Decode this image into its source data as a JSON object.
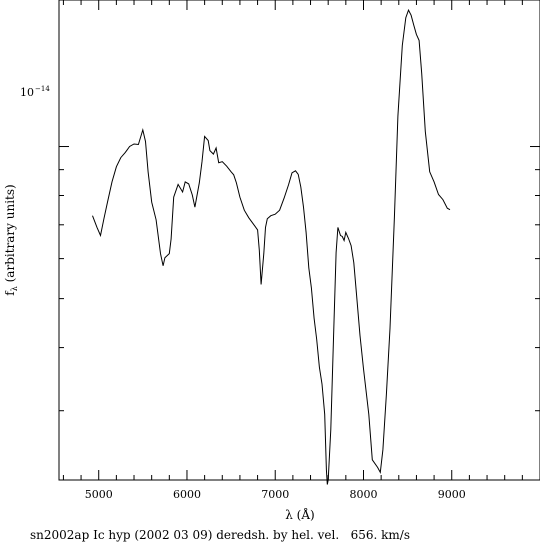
{
  "chart_data": {
    "type": "line",
    "title": "",
    "caption": "sn2002ap Ic hyp (2002 03 09) deredsh. by hel. vel.   656. km/s",
    "xlabel": "λ (Å)",
    "ylabel": "f",
    "ylabel_sub": "λ",
    "ylabel_rest": " (arbitrary units)",
    "xlim": [
      4550,
      10000
    ],
    "ylim_log10": [
      -14.66,
      -13.71
    ],
    "x_scale": "linear",
    "y_scale": "log",
    "x_ticks": [
      5000,
      6000,
      7000,
      8000,
      9000
    ],
    "x_tick_labels": [
      "5000",
      "6000",
      "7000",
      "8000",
      "9000"
    ],
    "y_tick_base": "10",
    "y_tick_exp": "−14",
    "grid": false,
    "color": "#000000",
    "series": [
      {
        "x": [
          4930,
          4980,
          5020,
          5060,
          5100,
          5150,
          5200,
          5250,
          5300,
          5350,
          5400,
          5450,
          5500,
          5530,
          5560,
          5600,
          5650,
          5700,
          5730,
          5750,
          5800,
          5820,
          5850,
          5900,
          5950,
          5980,
          6020,
          6060,
          6090,
          6110,
          6140,
          6170,
          6200,
          6240,
          6260,
          6300,
          6330,
          6360,
          6400,
          6450,
          6500,
          6530,
          6560,
          6600,
          6650,
          6700,
          6750,
          6800,
          6820,
          6840,
          6870,
          6890,
          6910,
          6950,
          7000,
          7050,
          7100,
          7150,
          7190,
          7230,
          7260,
          7290,
          7320,
          7350,
          7380,
          7410,
          7440,
          7470,
          7500,
          7530,
          7560,
          7580,
          7590,
          7600,
          7630,
          7660,
          7690,
          7710,
          7740,
          7760,
          7780,
          7800,
          7830,
          7860,
          7890,
          7920,
          7960,
          8000,
          8060,
          8100,
          8160,
          8190,
          8220,
          8260,
          8300,
          8350,
          8390,
          8440,
          8480,
          8510,
          8540,
          8570,
          8600,
          8630,
          8660,
          8700,
          8750,
          8800,
          8850,
          8900,
          8950,
          8980
        ],
        "y": [
          -14.137,
          -14.16,
          -14.176,
          -14.142,
          -14.11,
          -14.07,
          -14.04,
          -14.022,
          -14.012,
          -14.0,
          -13.995,
          -13.996,
          -13.967,
          -13.99,
          -14.05,
          -14.11,
          -14.145,
          -14.212,
          -14.236,
          -14.22,
          -14.212,
          -14.183,
          -14.1,
          -14.075,
          -14.09,
          -14.07,
          -14.074,
          -14.096,
          -14.12,
          -14.1,
          -14.072,
          -14.03,
          -13.98,
          -13.988,
          -14.008,
          -14.015,
          -14.003,
          -14.032,
          -14.03,
          -14.039,
          -14.05,
          -14.056,
          -14.072,
          -14.1,
          -14.126,
          -14.141,
          -14.153,
          -14.165,
          -14.205,
          -14.273,
          -14.212,
          -14.16,
          -14.143,
          -14.137,
          -14.134,
          -14.126,
          -14.102,
          -14.076,
          -14.052,
          -14.048,
          -14.055,
          -14.08,
          -14.12,
          -14.17,
          -14.24,
          -14.28,
          -14.34,
          -14.382,
          -14.437,
          -14.47,
          -14.53,
          -14.64,
          -14.669,
          -14.66,
          -14.56,
          -14.38,
          -14.21,
          -14.16,
          -14.176,
          -14.178,
          -14.186,
          -14.17,
          -14.182,
          -14.196,
          -14.23,
          -14.29,
          -14.374,
          -14.44,
          -14.53,
          -14.62,
          -14.635,
          -14.645,
          -14.6,
          -14.49,
          -14.36,
          -14.14,
          -13.94,
          -13.8,
          -13.745,
          -13.73,
          -13.74,
          -13.76,
          -13.778,
          -13.79,
          -13.855,
          -13.97,
          -14.05,
          -14.07,
          -14.095,
          -14.105,
          -14.122,
          -14.125
        ]
      }
    ]
  }
}
